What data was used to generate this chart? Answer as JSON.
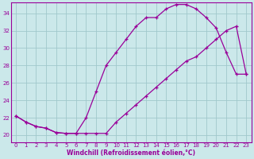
{
  "xlabel": "Windchill (Refroidissement éolien,°C)",
  "bg_color": "#cbe8ea",
  "line_color": "#990099",
  "grid_color": "#a0c8cc",
  "xlim": [
    -0.5,
    23.5
  ],
  "ylim": [
    19.2,
    35.2
  ],
  "xticks": [
    0,
    1,
    2,
    3,
    4,
    5,
    6,
    7,
    8,
    9,
    10,
    11,
    12,
    13,
    14,
    15,
    16,
    17,
    18,
    19,
    20,
    21,
    22,
    23
  ],
  "yticks": [
    20,
    22,
    24,
    26,
    28,
    30,
    32,
    34
  ],
  "curve1_x": [
    0,
    1,
    2,
    3,
    4,
    5,
    6,
    7,
    8,
    9,
    10,
    11,
    12,
    13,
    14,
    15,
    16,
    17,
    18,
    19,
    20,
    21,
    22,
    23
  ],
  "curve1_y": [
    22.2,
    21.5,
    21.0,
    20.8,
    20.3,
    20.2,
    20.2,
    20.2,
    20.2,
    20.2,
    21.5,
    22.5,
    23.5,
    24.5,
    25.5,
    26.5,
    27.5,
    28.5,
    29.0,
    30.0,
    31.0,
    32.0,
    32.5,
    27.0
  ],
  "curve2_x": [
    0,
    1,
    2,
    3,
    4,
    5,
    6,
    7,
    8,
    9,
    10,
    11,
    12,
    13,
    14,
    15,
    16,
    17,
    18,
    19,
    20,
    21,
    22,
    23
  ],
  "curve2_y": [
    22.2,
    21.5,
    21.0,
    20.8,
    20.3,
    20.2,
    20.2,
    22.0,
    25.0,
    28.0,
    29.5,
    31.0,
    32.5,
    33.5,
    33.5,
    34.5,
    35.0,
    35.0,
    34.5,
    33.5,
    32.3,
    29.5,
    27.0,
    27.0
  ]
}
